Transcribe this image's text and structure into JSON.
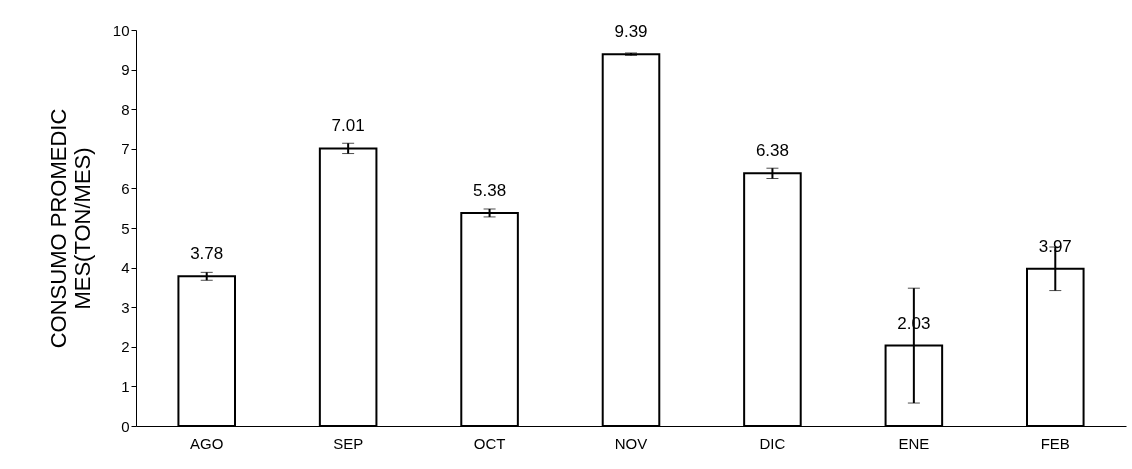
{
  "chart_data": {
    "type": "bar",
    "ylabel": "CONSUMO PROMEDIC\nMES(TON/MES)",
    "categories": [
      "AGO",
      "SEP",
      "OCT",
      "NOV",
      "DIC",
      "ENE",
      "FEB"
    ],
    "values": [
      3.78,
      7.01,
      5.38,
      9.39,
      6.38,
      2.03,
      3.97
    ],
    "errors": [
      0.1,
      0.13,
      0.1,
      0.03,
      0.13,
      1.45,
      0.55
    ],
    "color": "#ffffff",
    "data_labels": true,
    "grid": false,
    "ylim": [
      0,
      10
    ],
    "yticks": [
      0,
      1,
      2,
      3,
      4,
      5,
      6,
      7,
      8,
      9,
      10
    ]
  }
}
